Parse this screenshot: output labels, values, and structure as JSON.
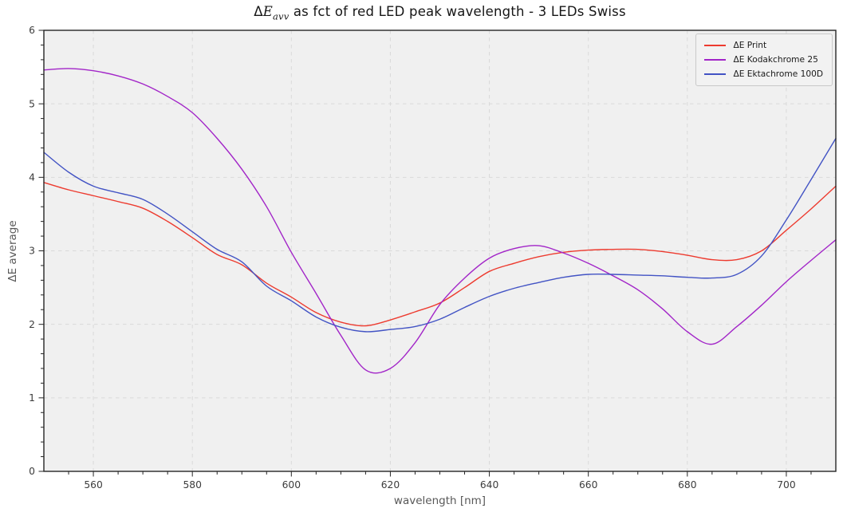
{
  "title": {
    "delta": "Δ",
    "symbol": "E",
    "subscript": "avv",
    "rest": " as fct of red LED peak wavelength - 3 LEDs Swiss"
  },
  "colors": {
    "figure_background": "#ffffff",
    "plot_background": "#f0f0f0",
    "grid": "#d9d9d9",
    "spine": "#262626",
    "tick_label": "#3c3c3c",
    "axis_label": "#585858",
    "legend_background": "#f2f2f2",
    "legend_border": "#c9c9c9"
  },
  "chart_data": {
    "type": "line",
    "title": "ΔE_avv as fct of red LED peak wavelength - 3 LEDs Swiss",
    "xlabel": "wavelength [nm]",
    "ylabel": "ΔE average",
    "xlim": [
      550,
      710
    ],
    "ylim": [
      0,
      6
    ],
    "x_major_ticks": [
      560,
      580,
      600,
      620,
      640,
      660,
      680,
      700
    ],
    "x_minor_step": 5,
    "y_major_ticks": [
      0,
      1,
      2,
      3,
      4,
      5,
      6
    ],
    "y_minor_step": 0.2,
    "grid": "major-dashed",
    "legend_position": "upper right",
    "x": [
      550,
      555,
      560,
      565,
      570,
      575,
      580,
      585,
      590,
      595,
      600,
      605,
      610,
      615,
      620,
      625,
      630,
      635,
      640,
      645,
      650,
      655,
      660,
      665,
      670,
      675,
      680,
      685,
      690,
      695,
      700,
      705,
      710
    ],
    "series": [
      {
        "name": "ΔE Print",
        "color": "#ed3b2f",
        "values": [
          3.93,
          3.83,
          3.75,
          3.67,
          3.58,
          3.4,
          3.18,
          2.95,
          2.81,
          2.56,
          2.37,
          2.16,
          2.03,
          1.98,
          2.06,
          2.17,
          2.29,
          2.5,
          2.72,
          2.83,
          2.92,
          2.98,
          3.01,
          3.02,
          3.02,
          2.99,
          2.94,
          2.88,
          2.88,
          3.0,
          3.28,
          3.57,
          3.88
        ]
      },
      {
        "name": "ΔE Kodakchrome 25",
        "color": "#a225c8",
        "values": [
          5.46,
          5.48,
          5.45,
          5.38,
          5.27,
          5.1,
          4.88,
          4.53,
          4.11,
          3.6,
          2.98,
          2.42,
          1.85,
          1.38,
          1.4,
          1.75,
          2.27,
          2.63,
          2.9,
          3.03,
          3.07,
          2.97,
          2.83,
          2.66,
          2.47,
          2.21,
          1.9,
          1.73,
          1.97,
          2.26,
          2.58,
          2.87,
          3.15
        ]
      },
      {
        "name": "ΔE Ektachrome 100D",
        "color": "#4253c4",
        "values": [
          4.34,
          4.07,
          3.88,
          3.79,
          3.7,
          3.5,
          3.26,
          3.02,
          2.85,
          2.52,
          2.32,
          2.1,
          1.96,
          1.9,
          1.93,
          1.97,
          2.07,
          2.23,
          2.38,
          2.49,
          2.57,
          2.64,
          2.68,
          2.68,
          2.67,
          2.66,
          2.64,
          2.63,
          2.68,
          2.93,
          3.42,
          3.97,
          4.53
        ]
      }
    ]
  }
}
